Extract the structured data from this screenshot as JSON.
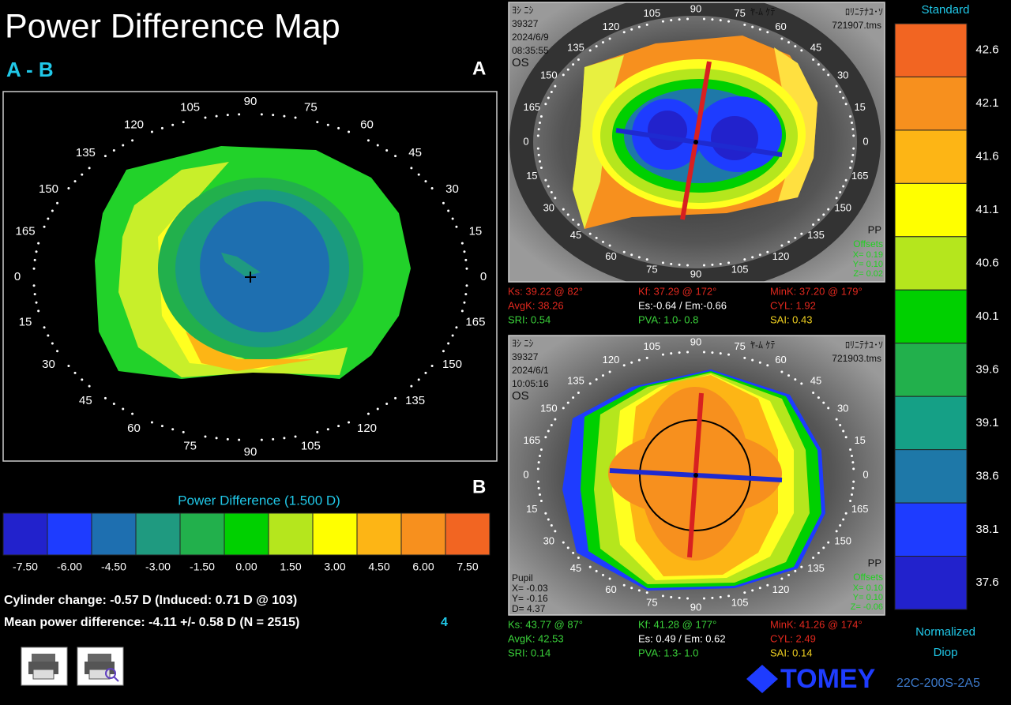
{
  "title": "Power Difference Map",
  "subtitle": "A - B",
  "map_a_label": "A",
  "map_b_label": "B",
  "degree_labels": [
    "90",
    "75",
    "60",
    "45",
    "30",
    "15",
    "0",
    "165",
    "150",
    "135",
    "120",
    "105",
    "90",
    "75",
    "60",
    "45",
    "30",
    "15",
    "0",
    "165",
    "150",
    "135",
    "120",
    "105"
  ],
  "difference_scale": {
    "title": "Power Difference (1.500 D)",
    "labels": [
      "-7.50",
      "-6.00",
      "-4.50",
      "-3.00",
      "-1.50",
      "0.00",
      "1.50",
      "3.00",
      "4.50",
      "6.00",
      "7.50"
    ],
    "colors": [
      "#2222cc",
      "#1e3cff",
      "#1e6fb0",
      "#1f9a80",
      "#22b04c",
      "#00d000",
      "#b5e61d",
      "#ffff00",
      "#fdb515",
      "#f7901e",
      "#f26522"
    ]
  },
  "cylinder_change": "Cylinder change: -0.57 D (Induced:  0.71 D @ 103)",
  "mean_power_difference": "Mean power difference: -4.11 +/-  0.58 D (N = 2515)",
  "count": "4",
  "exams": [
    {
      "name": "ﾖｼ ﾆｼ",
      "id": "39327",
      "date": "2024/6/9",
      "time": "08:35:55",
      "eye": "OS",
      "operator": "ﾔ-ﾑ ｹﾃ",
      "patient": "ﾛﾘﾆﾃﾅﾕ･ｿ",
      "file": "721907.tms",
      "mode": "PP",
      "offsets_title": "Offsets",
      "offsets": [
        "X= 0.19",
        "Y= 0.10",
        "Z= 0.02"
      ],
      "stats": [
        {
          "text": "Ks: 39.22 @ 82°",
          "color": "#e0281e"
        },
        {
          "text": "Kf: 37.29 @ 172°",
          "color": "#e0281e"
        },
        {
          "text": "MinK: 37.20 @ 179°",
          "color": "#e0281e"
        },
        {
          "text": "AvgK: 38.26",
          "color": "#e0281e"
        },
        {
          "text": "Es:-0.64 / Em:-0.66",
          "color": "#ffffff"
        },
        {
          "text": "CYL: 1.92",
          "color": "#e0281e"
        },
        {
          "text": "SRI: 0.54",
          "color": "#3ad13a"
        },
        {
          "text": "PVA:  1.0- 0.8",
          "color": "#3ad13a"
        },
        {
          "text": "SAI: 0.43",
          "color": "#f0d020"
        }
      ]
    },
    {
      "name": "ﾖｼ ﾆｼ",
      "id": "39327",
      "date": "2024/6/1",
      "time": "10:05:16",
      "eye": "OS",
      "operator": "ﾔ-ﾑ ｹﾃ",
      "patient": "ﾛﾘﾆﾃﾅﾕ･ｿ",
      "file": "721903.tms",
      "mode": "PP",
      "offsets_title": "Offsets",
      "offsets": [
        "X= 0.10",
        "Y= 0.10",
        "Z= -0.06"
      ],
      "pupil": [
        "Pupil",
        "X= -0.03",
        "Y= -0.16",
        "D= 4.37"
      ],
      "stats": [
        {
          "text": "Ks: 43.77 @ 87°",
          "color": "#3ad13a"
        },
        {
          "text": "Kf: 41.28 @ 177°",
          "color": "#3ad13a"
        },
        {
          "text": "MinK: 41.26 @ 174°",
          "color": "#e0281e"
        },
        {
          "text": "AvgK: 42.53",
          "color": "#3ad13a"
        },
        {
          "text": "Es: 0.49 / Em: 0.62",
          "color": "#ffffff"
        },
        {
          "text": "CYL: 2.49",
          "color": "#e0281e"
        },
        {
          "text": "SRI: 0.14",
          "color": "#3ad13a"
        },
        {
          "text": "PVA:  1.3- 1.0",
          "color": "#3ad13a"
        },
        {
          "text": "SAI: 0.14",
          "color": "#f0d020"
        }
      ]
    }
  ],
  "standard_scale": {
    "title": "Standard",
    "labels": [
      "42.6",
      "42.1",
      "41.6",
      "41.1",
      "40.6",
      "40.1",
      "39.6",
      "39.1",
      "38.6",
      "38.1",
      "37.6"
    ],
    "colors": [
      "#f26522",
      "#f7901e",
      "#fdb515",
      "#ffff00",
      "#b5e61d",
      "#00d000",
      "#22b04c",
      "#15a086",
      "#1e78a8",
      "#1e3cff",
      "#2222cc"
    ],
    "footer": [
      "Normalized",
      "Diop"
    ]
  },
  "brand": "TOMEY",
  "version": "22C-200S-2A5"
}
